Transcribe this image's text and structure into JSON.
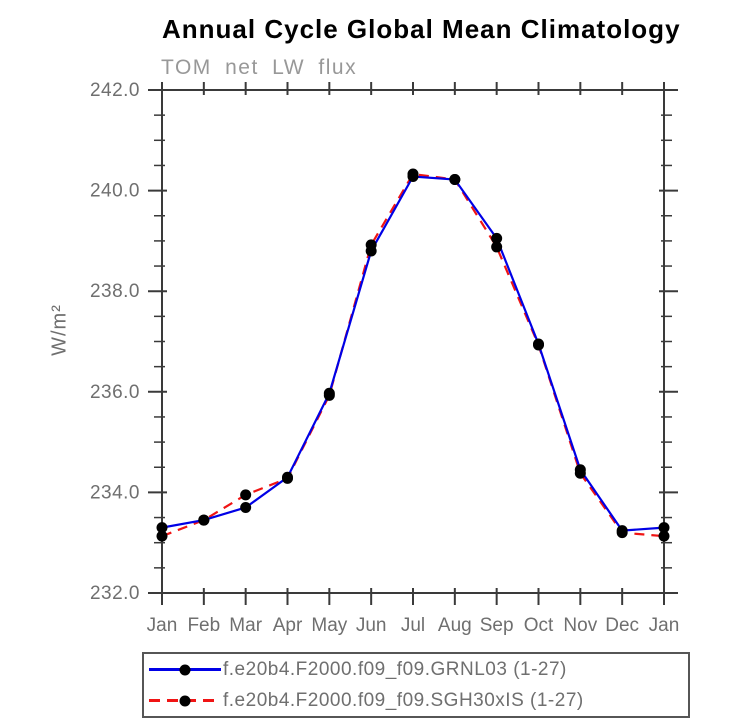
{
  "chart_data": {
    "type": "line",
    "title": "Annual Cycle Global Mean Climatology",
    "subtitle": "TOM net LW flux",
    "ylabel": "W/m²",
    "xlabel": "",
    "categories": [
      "Jan",
      "Feb",
      "Mar",
      "Apr",
      "May",
      "Jun",
      "Jul",
      "Aug",
      "Sep",
      "Oct",
      "Nov",
      "Dec",
      "Jan"
    ],
    "ylim": [
      232.0,
      242.0
    ],
    "y_major_ticks": [
      232.0,
      234.0,
      236.0,
      238.0,
      240.0,
      242.0
    ],
    "y_minor_step": 0.5,
    "grid": false,
    "legend_position": "bottom-left",
    "series": [
      {
        "name": "f.e20b4.F2000.f09_f09.GRNL03 (1-27)",
        "color": "#0000e6",
        "line_style": "solid",
        "marker": "filled-black-circle",
        "values": [
          233.3,
          233.45,
          233.7,
          234.3,
          235.97,
          238.8,
          240.28,
          240.22,
          239.05,
          236.95,
          234.45,
          233.24,
          233.3
        ]
      },
      {
        "name": "f.e20b4.F2000.f09_f09.SGH30xIS (1-27)",
        "color": "#f01414",
        "line_style": "dashed",
        "marker": "filled-black-circle",
        "values": [
          233.13,
          233.45,
          233.95,
          234.28,
          235.93,
          238.92,
          240.33,
          240.22,
          238.88,
          236.93,
          234.38,
          233.2,
          233.13
        ]
      }
    ]
  },
  "colors": {
    "background": "#ffffff",
    "axis": "#3a3a3a",
    "tick_label": "#6f6f6f",
    "title": "#000000",
    "subtitle": "#989898",
    "legend_text": "#6f6f6f",
    "marker": "#000000"
  }
}
